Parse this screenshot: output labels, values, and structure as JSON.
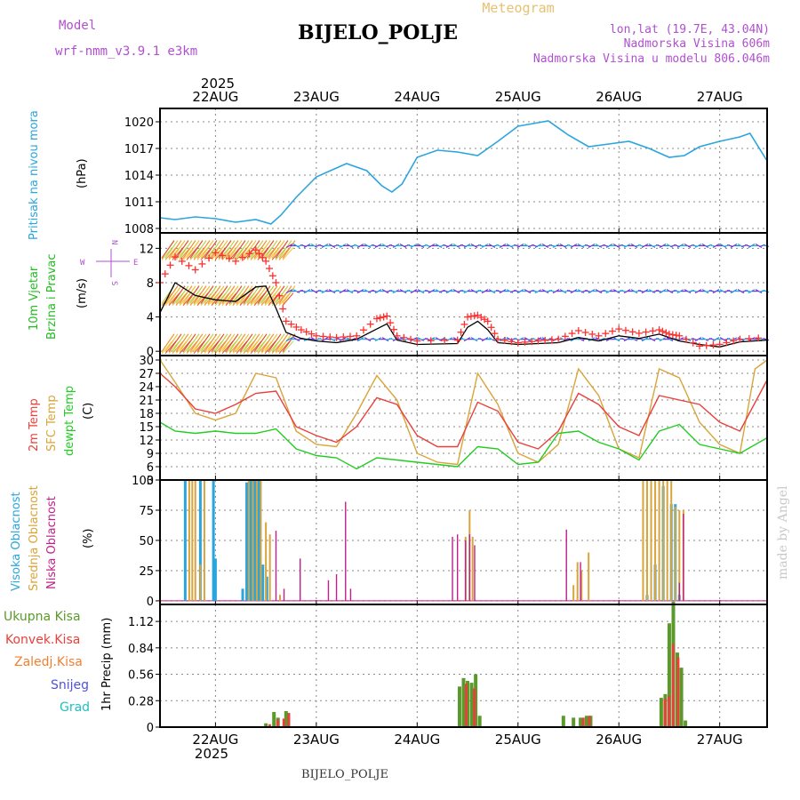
{
  "header": {
    "model_label": "Model",
    "model_name": "wrf-nmm_v3.9.1 e3km",
    "title": "BIJELO_POLJE",
    "meteogram": "Meteogram",
    "lonlat": "lon,lat (19.7E, 43.04N)",
    "altitude": "Nadmorska Visina 606m",
    "model_altitude": "Nadmorska Visina u modelu 806.046m",
    "watermark": "made by Angel",
    "footer_station": "BIJELO_POLJE",
    "year_top": "2025",
    "year_bottom": "2025"
  },
  "colors": {
    "pressure": "#2aa5dd",
    "t2m": "#e8403a",
    "sfc": "#d9a43a",
    "dewpt": "#22cc22",
    "cloud_high": "#2aa5dd",
    "cloud_mid": "#d9a43a",
    "cloud_low": "#c0208a",
    "rain_total": "#5a9a2a",
    "rain_conv": "#e8403a",
    "ice": "#f08030",
    "snow": "#5050e0",
    "hail": "#20c0c0",
    "wind_speed": "#000000",
    "gust": "#ff3030",
    "label_model": "#b050d0"
  },
  "chart_data": [
    {
      "type": "line",
      "panel": "pressure",
      "ylabel_name": "Pritisak na nivou mora",
      "unit": "(hPa)",
      "x_days": [
        22,
        23,
        24,
        25,
        26,
        27
      ],
      "xlim": [
        21.45,
        27.47
      ],
      "ylim": [
        1007.5,
        1021.5
      ],
      "yticks": [
        1008,
        1011,
        1014,
        1017,
        1020
      ],
      "series": [
        {
          "name": "MSLP",
          "x": [
            21.45,
            21.6,
            21.8,
            22.0,
            22.2,
            22.4,
            22.55,
            22.65,
            22.8,
            23.0,
            23.2,
            23.3,
            23.5,
            23.65,
            23.75,
            23.85,
            24.0,
            24.2,
            24.4,
            24.6,
            24.8,
            25.0,
            25.15,
            25.3,
            25.5,
            25.7,
            25.9,
            26.1,
            26.3,
            26.5,
            26.65,
            26.8,
            27.0,
            27.2,
            27.3,
            27.47
          ],
          "values": [
            1009.2,
            1009.0,
            1009.3,
            1009.1,
            1008.7,
            1009.0,
            1008.5,
            1009.5,
            1011.5,
            1013.8,
            1014.8,
            1015.3,
            1014.5,
            1012.8,
            1012.1,
            1013.0,
            1016.0,
            1016.8,
            1016.6,
            1016.2,
            1017.8,
            1019.5,
            1019.8,
            1020.1,
            1018.5,
            1017.2,
            1017.5,
            1017.8,
            1017.0,
            1016.0,
            1016.2,
            1017.2,
            1017.8,
            1018.3,
            1018.7,
            1015.6
          ]
        }
      ]
    },
    {
      "type": "line",
      "panel": "wind",
      "ylabel_name": "10m Vjetar",
      "ylabel_sub": "Brzina i Pravac",
      "unit": "(m/s)",
      "compass": [
        "N",
        "E",
        "S",
        "W"
      ],
      "xlim": [
        21.45,
        27.47
      ],
      "ylim": [
        -0.5,
        13.8
      ],
      "yticks": [
        0,
        4,
        8,
        12
      ],
      "series": [
        {
          "name": "wind speed",
          "x": [
            21.45,
            21.6,
            21.8,
            22.0,
            22.2,
            22.4,
            22.5,
            22.6,
            22.7,
            22.85,
            23.0,
            23.2,
            23.4,
            23.6,
            23.7,
            23.8,
            24.0,
            24.4,
            24.5,
            24.6,
            24.7,
            24.8,
            25.0,
            25.2,
            25.4,
            25.6,
            25.8,
            26.0,
            26.2,
            26.4,
            26.5,
            26.6,
            26.8,
            27.0,
            27.2,
            27.47
          ],
          "values": [
            4.5,
            8.0,
            6.5,
            6.0,
            5.8,
            7.5,
            7.6,
            5.0,
            2.2,
            1.5,
            1.2,
            1.0,
            1.4,
            2.6,
            3.2,
            1.3,
            0.8,
            0.9,
            2.8,
            3.5,
            2.5,
            1.0,
            0.8,
            0.9,
            1.0,
            1.6,
            1.2,
            1.8,
            1.5,
            2.0,
            1.6,
            1.2,
            0.8,
            0.5,
            1.1,
            1.3
          ]
        },
        {
          "name": "gusts",
          "x": [
            21.45,
            21.6,
            21.8,
            22.0,
            22.2,
            22.4,
            22.5,
            22.6,
            22.7,
            22.85,
            23.0,
            23.2,
            23.4,
            23.6,
            23.7,
            23.8,
            24.0,
            24.4,
            24.5,
            24.6,
            24.7,
            24.8,
            25.0,
            25.2,
            25.4,
            25.6,
            25.8,
            26.0,
            26.2,
            26.4,
            26.5,
            26.6,
            26.8,
            27.0,
            27.2,
            27.47
          ],
          "values": [
            8.0,
            11.0,
            9.5,
            11.5,
            10.5,
            11.8,
            10.5,
            8.0,
            3.5,
            2.5,
            1.8,
            1.6,
            1.8,
            3.8,
            4.1,
            1.8,
            1.2,
            1.3,
            4.0,
            4.2,
            3.5,
            1.4,
            1.0,
            1.2,
            1.4,
            2.4,
            1.8,
            2.6,
            2.1,
            2.5,
            2.0,
            1.8,
            0.6,
            0.8,
            1.4,
            1.6
          ]
        }
      ]
    },
    {
      "type": "line",
      "panel": "temperature",
      "ylabel_t2m": "2m Temp",
      "ylabel_sfc": "SFC Temp",
      "ylabel_dew": "dewpt Temp",
      "unit": "(C)",
      "xlim": [
        21.45,
        27.47
      ],
      "ylim": [
        3,
        31
      ],
      "yticks": [
        3,
        6,
        9,
        12,
        15,
        18,
        21,
        24,
        27,
        30
      ],
      "series": [
        {
          "name": "2m Temp",
          "x": [
            21.45,
            21.6,
            21.8,
            22.0,
            22.2,
            22.4,
            22.6,
            22.8,
            23.0,
            23.2,
            23.4,
            23.6,
            23.8,
            24.0,
            24.2,
            24.4,
            24.6,
            24.8,
            25.0,
            25.2,
            25.4,
            25.6,
            25.8,
            26.0,
            26.2,
            26.4,
            26.6,
            26.8,
            27.0,
            27.2,
            27.47
          ],
          "values": [
            27,
            24,
            19,
            18,
            20,
            22.5,
            23,
            15,
            13,
            11.5,
            15,
            21.5,
            20,
            13,
            10.5,
            10.5,
            20.5,
            18.5,
            11.5,
            10,
            14,
            22.5,
            20,
            15,
            13,
            22,
            21,
            20,
            16,
            14,
            25.5
          ]
        },
        {
          "name": "SFC Temp",
          "x": [
            21.45,
            21.6,
            21.8,
            22.0,
            22.2,
            22.4,
            22.6,
            22.8,
            23.0,
            23.2,
            23.4,
            23.6,
            23.8,
            24.0,
            24.2,
            24.4,
            24.6,
            24.8,
            25.0,
            25.2,
            25.4,
            25.6,
            25.8,
            26.0,
            26.2,
            26.4,
            26.6,
            26.8,
            27.0,
            27.2,
            27.35,
            27.47
          ],
          "values": [
            30,
            25,
            18,
            16.5,
            18,
            27,
            26,
            14,
            11,
            10.5,
            18,
            26.5,
            21,
            9,
            7,
            6.5,
            27,
            20,
            9,
            7,
            11,
            28,
            22,
            10,
            8,
            28,
            26,
            16,
            11,
            9,
            28,
            30
          ]
        },
        {
          "name": "dewpt Temp",
          "x": [
            21.45,
            21.6,
            21.8,
            22.0,
            22.2,
            22.4,
            22.6,
            22.8,
            23.0,
            23.2,
            23.4,
            23.6,
            23.8,
            24.0,
            24.2,
            24.4,
            24.6,
            24.8,
            25.0,
            25.2,
            25.4,
            25.6,
            25.8,
            26.0,
            26.2,
            26.4,
            26.6,
            26.8,
            27.0,
            27.2,
            27.47
          ],
          "values": [
            16,
            14,
            13.5,
            14,
            13.5,
            13.5,
            14.5,
            10,
            8.5,
            8,
            5.5,
            8,
            7.5,
            7,
            6.5,
            6,
            10.5,
            10,
            6.5,
            7,
            13.5,
            14,
            11.5,
            10,
            7.5,
            14,
            15.5,
            11,
            10,
            9,
            12.5
          ]
        }
      ]
    },
    {
      "type": "bar",
      "panel": "clouds",
      "ylabel_high": "Visoka Oblacnost",
      "ylabel_mid": "Srednja Oblacnost",
      "ylabel_low": "Niska Oblacnost",
      "unit": "(%)",
      "xlim": [
        21.45,
        27.47
      ],
      "ylim": [
        -3,
        100
      ],
      "yticks": [
        0,
        25,
        50,
        75,
        100
      ],
      "series": [
        {
          "name": "high",
          "x": [
            21.7,
            21.85,
            21.98,
            22.0,
            22.27,
            22.31,
            22.35,
            22.39,
            22.43,
            22.47,
            22.51,
            25.45,
            26.2,
            26.28,
            26.36,
            26.44,
            26.52,
            26.56,
            26.6
          ],
          "values": [
            100,
            100,
            100,
            35,
            10,
            98,
            100,
            100,
            100,
            30,
            20,
            0,
            0,
            5,
            30,
            95,
            80,
            80,
            5
          ]
        },
        {
          "name": "mid",
          "x": [
            21.74,
            21.77,
            21.8,
            21.85,
            21.89,
            22.33,
            22.37,
            22.41,
            22.45,
            22.5,
            22.54,
            22.58,
            22.64,
            24.4,
            24.48,
            24.52,
            24.55,
            24.59,
            25.55,
            25.59,
            25.63,
            25.7,
            26.24,
            26.28,
            26.32,
            26.36,
            26.4,
            26.44,
            26.48,
            26.52,
            26.56,
            26.6,
            26.64
          ],
          "values": [
            100,
            100,
            100,
            30,
            100,
            100,
            100,
            100,
            100,
            65,
            55,
            0,
            5,
            0,
            53,
            75,
            53,
            0,
            13,
            32,
            25,
            40,
            100,
            100,
            100,
            100,
            100,
            100,
            100,
            100,
            78,
            75,
            75
          ]
        },
        {
          "name": "low",
          "x": [
            22.6,
            22.68,
            22.84,
            23.12,
            23.2,
            23.29,
            23.34,
            24.35,
            24.4,
            24.48,
            24.52,
            24.57,
            25.48,
            25.62,
            26.6,
            26.64
          ],
          "values": [
            58,
            10,
            35,
            17,
            22,
            82,
            10,
            53,
            55,
            50,
            55,
            46,
            59,
            32,
            15,
            72
          ]
        }
      ]
    },
    {
      "type": "bar",
      "panel": "precip",
      "ylabel": "1hr Precip (mm)",
      "legend": [
        "Ukupna Kisa",
        "Konvek.Kisa",
        "Zaledj.Kisa",
        "Snijeg",
        "Grad"
      ],
      "xlim": [
        21.45,
        27.47
      ],
      "ylim": [
        0,
        1.3
      ],
      "yticks": [
        0,
        0.28,
        0.56,
        0.84,
        1.12
      ],
      "series": [
        {
          "name": "Ukupna Kisa",
          "x": [
            22.5,
            22.58,
            22.62,
            22.7,
            24.42,
            24.46,
            24.5,
            24.54,
            24.58,
            24.62,
            25.45,
            25.55,
            25.62,
            25.68,
            25.72,
            26.42,
            26.46,
            26.5,
            26.54,
            26.58,
            26.62,
            26.66
          ],
          "values": [
            0.04,
            0.16,
            0.1,
            0.17,
            0.43,
            0.52,
            0.49,
            0.47,
            0.56,
            0.12,
            0.12,
            0.1,
            0.1,
            0.12,
            0.12,
            0.31,
            0.35,
            1.1,
            1.33,
            0.79,
            0.63,
            0.07
          ]
        },
        {
          "name": "Konvek.Kisa",
          "x": [
            22.52,
            22.6,
            22.66,
            22.71,
            24.47,
            24.55,
            25.63,
            25.69,
            26.44,
            26.48,
            26.52,
            26.57
          ],
          "values": [
            0.03,
            0.08,
            0.09,
            0.15,
            0.46,
            0.41,
            0.1,
            0.12,
            0.3,
            0.33,
            0.88,
            0.74
          ]
        }
      ]
    }
  ]
}
